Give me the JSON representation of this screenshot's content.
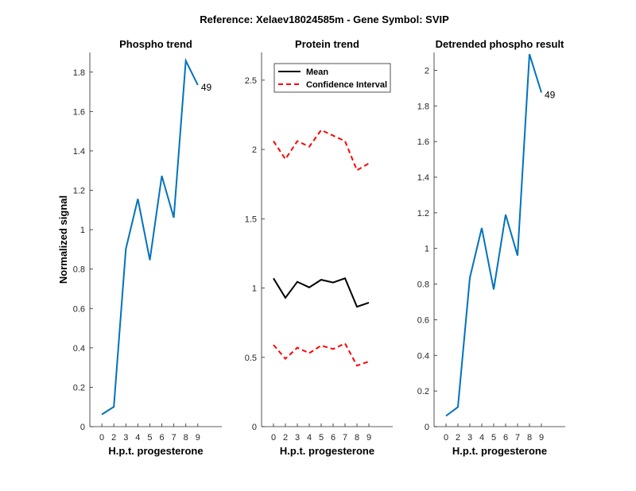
{
  "suptitle": "Reference:  Xelaev18024585m - Gene Symbol:  SVIP",
  "chart_data": [
    {
      "type": "line",
      "title": "Phospho trend",
      "xlabel": "H.p.t. progesterone",
      "ylabel": "Normalized signal",
      "categories": [
        "0",
        "2",
        "3",
        "4",
        "5",
        "6",
        "7",
        "8",
        "9"
      ],
      "xlim": [
        -1,
        10
      ],
      "ylim": [
        0,
        1.9
      ],
      "yticks": [
        0,
        0.2,
        0.4,
        0.6,
        0.8,
        1,
        1.2,
        1.4,
        1.6,
        1.8
      ],
      "series": [
        {
          "name": "Phospho",
          "color": "#0072BD",
          "dash": "",
          "values": [
            0.062,
            0.101,
            0.902,
            1.156,
            0.846,
            1.273,
            1.061,
            1.858,
            1.735
          ]
        }
      ],
      "annotation": {
        "text": "49",
        "category": "9"
      }
    },
    {
      "type": "line",
      "title": "Protein trend",
      "xlabel": "H.p.t. progesterone",
      "ylabel": "",
      "categories": [
        "0",
        "2",
        "3",
        "4",
        "5",
        "6",
        "7",
        "8",
        "9"
      ],
      "xlim": [
        -1,
        10
      ],
      "ylim": [
        0,
        2.7
      ],
      "yticks": [
        0,
        0.5,
        1,
        1.5,
        2,
        2.5
      ],
      "series": [
        {
          "name": "Mean",
          "color": "#000000",
          "dash": "",
          "values": [
            1.07,
            0.93,
            1.045,
            1.005,
            1.06,
            1.04,
            1.07,
            0.865,
            0.895
          ]
        },
        {
          "name": "Confidence Interval",
          "color": "#FF0000",
          "dash": "6,4",
          "values": [
            2.06,
            1.93,
            2.06,
            2.02,
            2.14,
            2.1,
            2.06,
            1.85,
            1.9
          ]
        },
        {
          "name": "Confidence Interval lower",
          "color": "#FF0000",
          "dash": "6,4",
          "values": [
            0.59,
            0.49,
            0.57,
            0.53,
            0.585,
            0.56,
            0.6,
            0.44,
            0.47
          ]
        }
      ],
      "legend": {
        "placement": "top-left",
        "entries": [
          {
            "label": "Mean",
            "color": "#000000",
            "dash": ""
          },
          {
            "label": "Confidence Interval",
            "color": "#FF0000",
            "dash": "6,4"
          }
        ]
      }
    },
    {
      "type": "line",
      "title": "Detrended phospho result",
      "xlabel": "H.p.t. progesterone",
      "ylabel": "",
      "categories": [
        "0",
        "2",
        "3",
        "4",
        "5",
        "6",
        "7",
        "8",
        "9"
      ],
      "xlim": [
        -1,
        10
      ],
      "ylim": [
        0,
        2.1
      ],
      "yticks": [
        0,
        0.2,
        0.4,
        0.6,
        0.8,
        1,
        1.2,
        1.4,
        1.6,
        1.8,
        2
      ],
      "series": [
        {
          "name": "Detrended",
          "color": "#0072BD",
          "dash": "",
          "values": [
            0.06,
            0.11,
            0.835,
            1.115,
            0.77,
            1.19,
            0.96,
            2.09,
            1.875
          ]
        }
      ],
      "annotation": {
        "text": "49",
        "category": "9"
      }
    }
  ]
}
